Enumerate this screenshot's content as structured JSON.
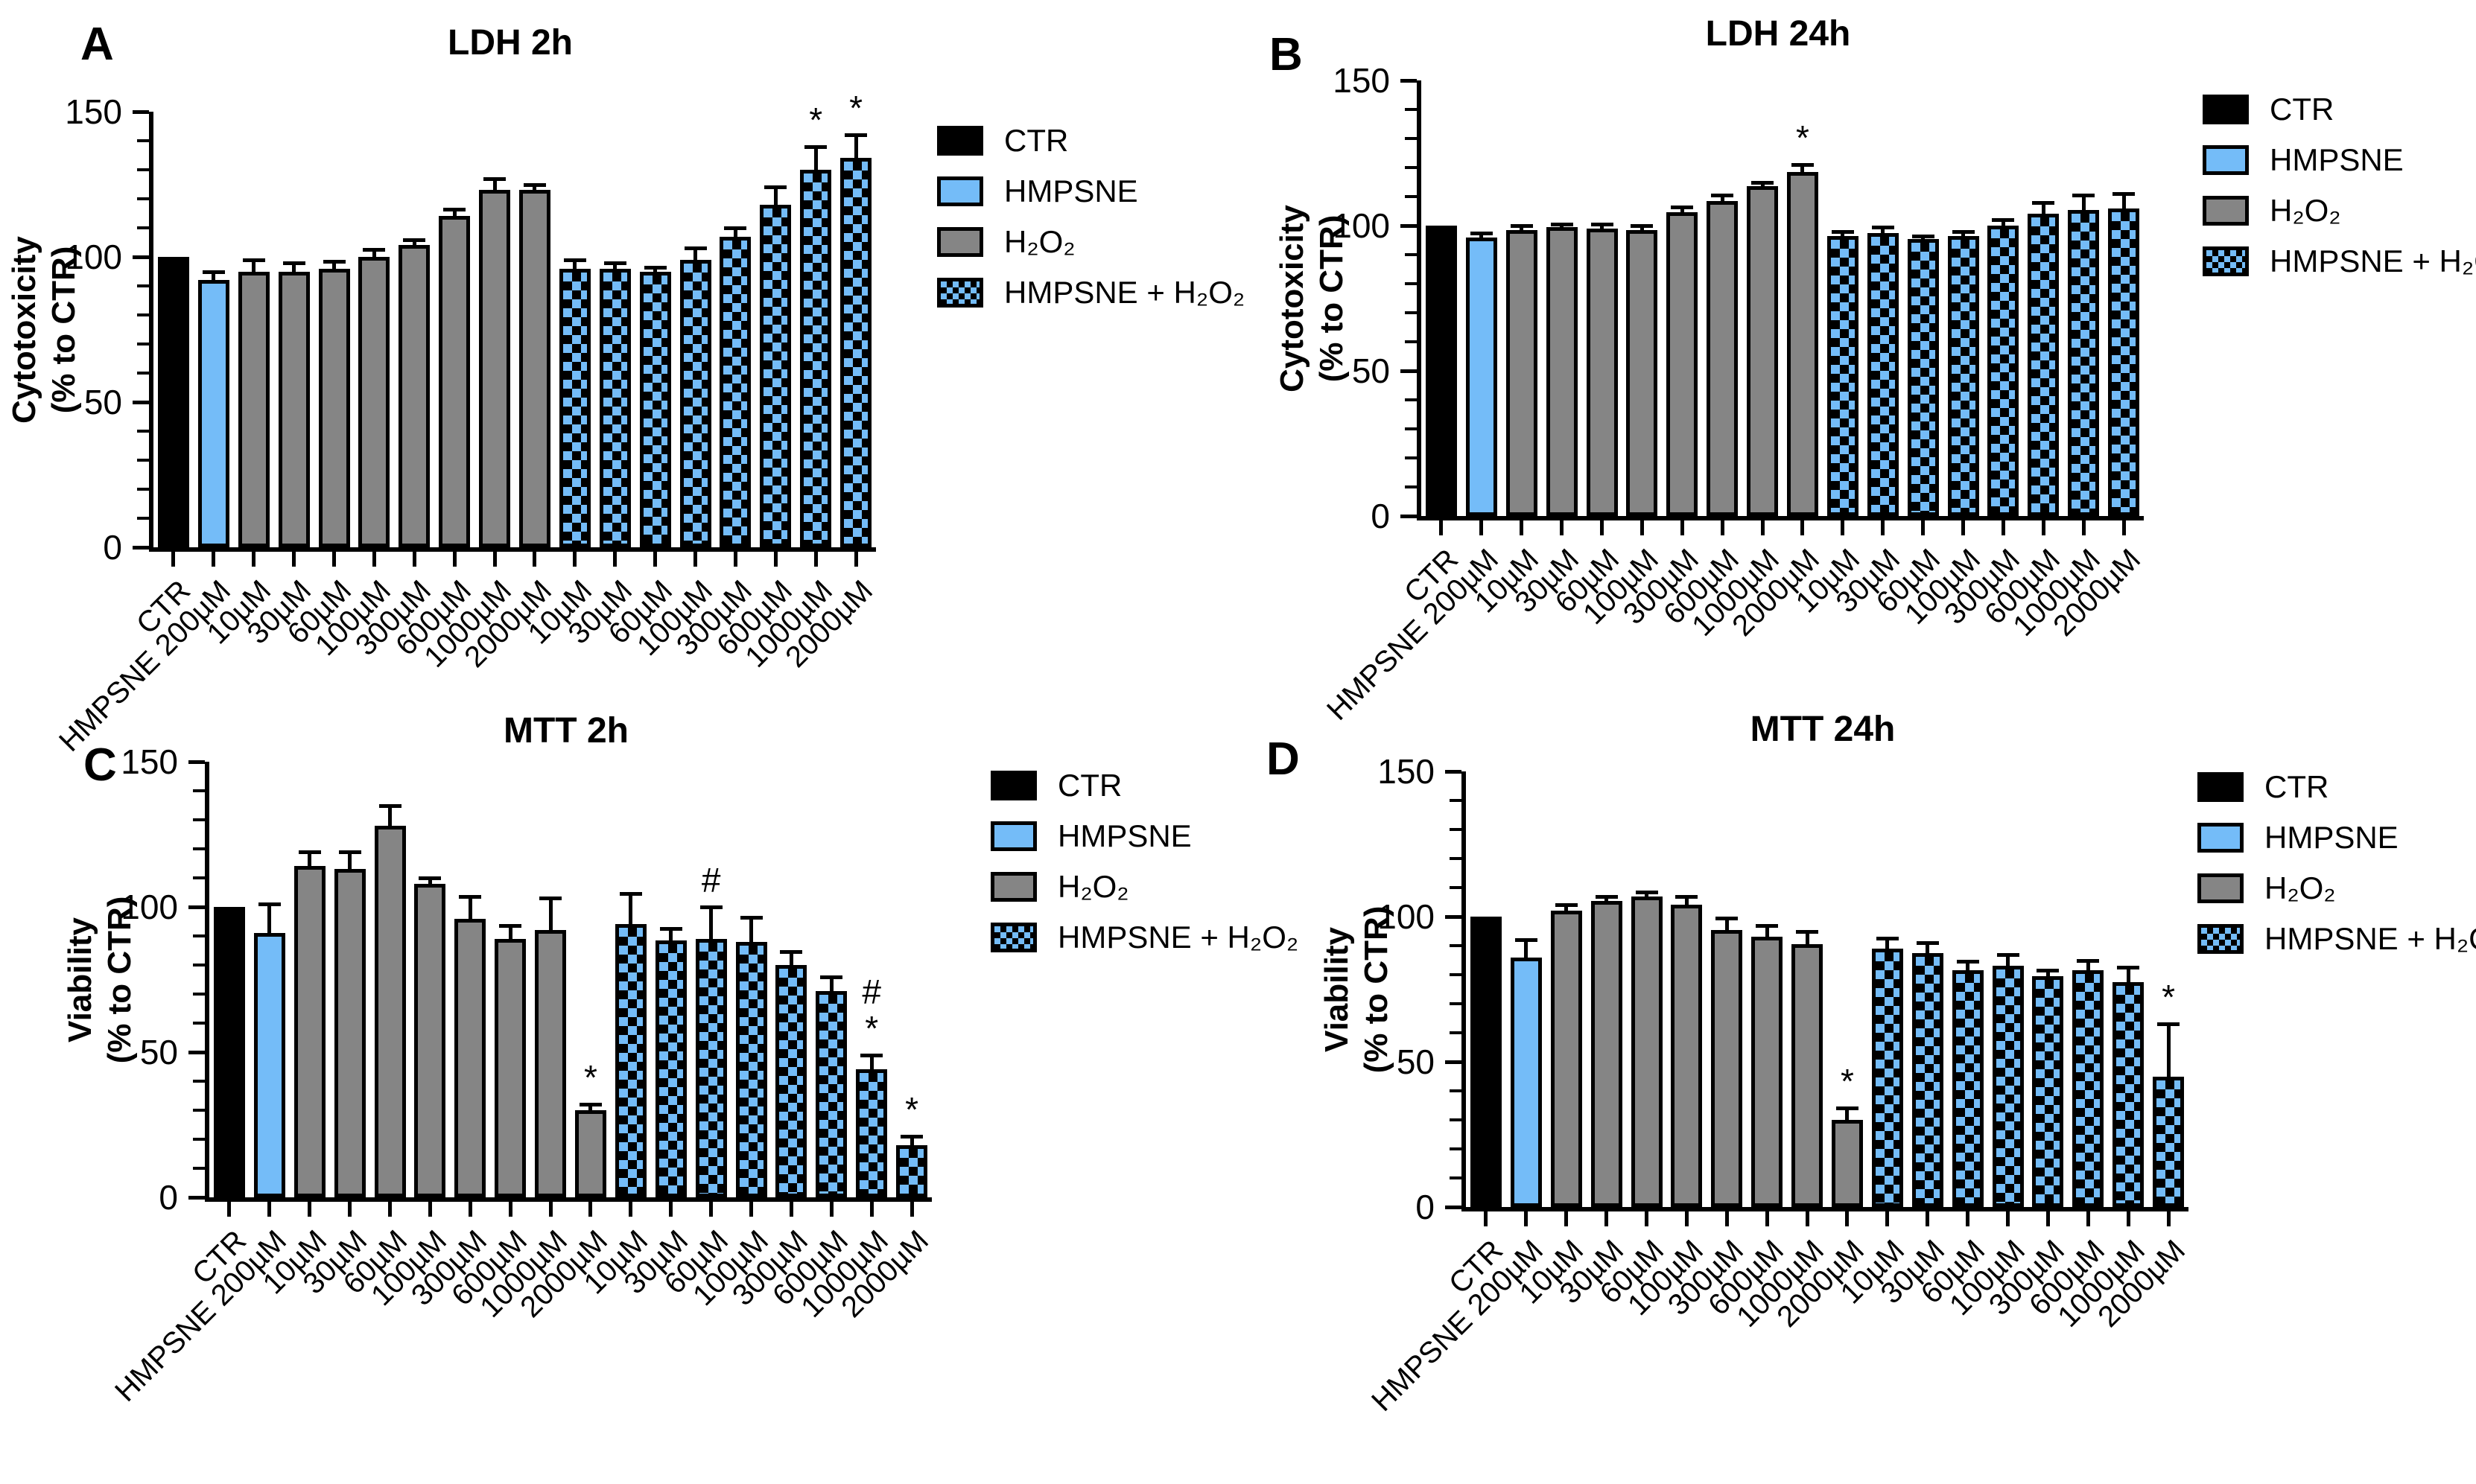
{
  "figure": {
    "panel_letters": [
      "A",
      "B",
      "C",
      "D"
    ]
  },
  "colors": {
    "black": "#000000",
    "blue": "#74BCF8",
    "gray": "#858585",
    "background": "#FFFFFF"
  },
  "legend": [
    {
      "label": "CTR",
      "style": "ctr"
    },
    {
      "label": "HMPSNE",
      "style": "hmpsne"
    },
    {
      "label": "H₂O₂",
      "style": "h2o2"
    },
    {
      "label": "HMPSNE + H₂O₂",
      "style": "checker"
    }
  ],
  "categories": [
    "CTR",
    "HMPSNE 200µM",
    "10µM",
    "30µM",
    "60µM",
    "100µM",
    "300µM",
    "600µM",
    "1000µM",
    "2000µM",
    "10µM",
    "30µM",
    "60µM",
    "100µM",
    "300µM",
    "600µM",
    "1000µM",
    "2000µM"
  ],
  "bar_styles": [
    "ctr",
    "hmpsne",
    "h2o2",
    "h2o2",
    "h2o2",
    "h2o2",
    "h2o2",
    "h2o2",
    "h2o2",
    "h2o2",
    "checker",
    "checker",
    "checker",
    "checker",
    "checker",
    "checker",
    "checker",
    "checker"
  ],
  "chart_data": [
    {
      "type": "bar",
      "panel": "A",
      "title": "LDH 2h",
      "ylabel": "Cytotoxicity\n(% to CTR)",
      "ylim": [
        0,
        150
      ],
      "yticks": [
        0,
        50,
        100,
        150
      ],
      "minor_tick_step": 10,
      "categories": [
        "CTR",
        "HMPSNE 200µM",
        "10µM",
        "30µM",
        "60µM",
        "100µM",
        "300µM",
        "600µM",
        "1000µM",
        "2000µM",
        "10µM",
        "30µM",
        "60µM",
        "100µM",
        "300µM",
        "600µM",
        "1000µM",
        "2000µM"
      ],
      "values": [
        100,
        92,
        95,
        95,
        96,
        100,
        104,
        114,
        123,
        123,
        96,
        96,
        95,
        99,
        107,
        118,
        130,
        134
      ],
      "errors": [
        0,
        3,
        4,
        3,
        2.5,
        2.5,
        2,
        2.5,
        4,
        2,
        3,
        2,
        1.5,
        4,
        3,
        6,
        8,
        8
      ],
      "sig": {
        "16": "*",
        "17": "*"
      }
    },
    {
      "type": "bar",
      "panel": "B",
      "title": "LDH 24h",
      "ylabel": "Cytotoxicity\n(% to CTR)",
      "ylim": [
        0,
        150
      ],
      "yticks": [
        0,
        50,
        100,
        150
      ],
      "minor_tick_step": 10,
      "categories": [
        "CTR",
        "HMPSNE 200µM",
        "10µM",
        "30µM",
        "60µM",
        "100µM",
        "300µM",
        "600µM",
        "1000µM",
        "2000µM",
        "10µM",
        "30µM",
        "60µM",
        "100µM",
        "300µM",
        "600µM",
        "1000µM",
        "2000µM"
      ],
      "values": [
        100,
        96,
        98.5,
        99.5,
        99,
        98.5,
        104.5,
        108.5,
        113.5,
        118.5,
        96.5,
        97.5,
        95.5,
        96.5,
        100,
        104,
        105.5,
        106
      ],
      "errors": [
        0,
        1.5,
        1.5,
        1,
        1.5,
        1.5,
        2,
        2,
        1.5,
        2.5,
        1.5,
        2,
        1,
        1.5,
        2,
        4,
        5,
        5
      ],
      "sig": {
        "9": "*"
      }
    },
    {
      "type": "bar",
      "panel": "C",
      "title": "MTT 2h",
      "ylabel": "Viability\n(% to CTR)",
      "ylim": [
        0,
        150
      ],
      "yticks": [
        0,
        50,
        100,
        150
      ],
      "minor_tick_step": 10,
      "categories": [
        "CTR",
        "HMPSNE 200µM",
        "10µM",
        "30µM",
        "60µM",
        "100µM",
        "300µM",
        "600µM",
        "1000µM",
        "2000µM",
        "10µM",
        "30µM",
        "60µM",
        "100µM",
        "300µM",
        "600µM",
        "1000µM",
        "2000µM"
      ],
      "values": [
        100,
        91,
        114,
        113,
        128,
        108,
        96,
        89,
        92,
        30,
        94,
        88.5,
        89,
        88,
        80,
        71,
        44,
        18
      ],
      "errors": [
        0,
        10,
        5,
        6,
        7,
        2,
        7.5,
        4.5,
        11,
        2,
        10.5,
        4,
        11,
        8.5,
        4.5,
        5,
        5,
        3
      ],
      "sig": {
        "9": "*",
        "12": "#",
        "16": "#\n*",
        "17": "*"
      }
    },
    {
      "type": "bar",
      "panel": "D",
      "title": "MTT 24h",
      "ylabel": "Viability\n(% to CTR)",
      "ylim": [
        0,
        150
      ],
      "yticks": [
        0,
        50,
        100,
        150
      ],
      "minor_tick_step": 10,
      "categories": [
        "CTR",
        "HMPSNE 200µM",
        "10µM",
        "30µM",
        "60µM",
        "100µM",
        "300µM",
        "600µM",
        "1000µM",
        "2000µM",
        "10µM",
        "30µM",
        "60µM",
        "100µM",
        "300µM",
        "600µM",
        "1000µM",
        "2000µM"
      ],
      "values": [
        100,
        86,
        102,
        105.5,
        107,
        104,
        95.5,
        93,
        90.5,
        30,
        89,
        87.5,
        81.5,
        83,
        79.5,
        81.5,
        77.5,
        45
      ],
      "errors": [
        0,
        6,
        2,
        1.5,
        1.5,
        3,
        4,
        4,
        4.5,
        4,
        3.5,
        3.5,
        3,
        4,
        2,
        3.5,
        5,
        18
      ],
      "sig": {
        "9": "*",
        "17": "*"
      }
    }
  ]
}
